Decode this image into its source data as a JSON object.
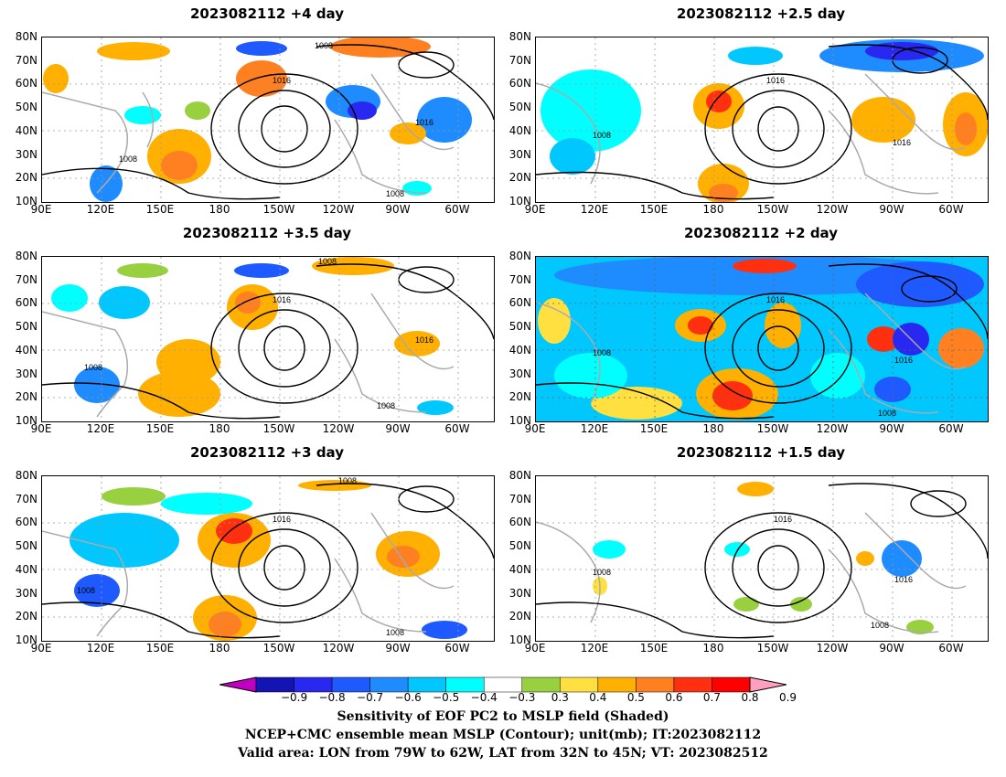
{
  "panels": [
    {
      "title": "2023082112  +4 day",
      "contour_label_1": "1008",
      "contour_label_2": "1016",
      "contour_label_3": "1016",
      "contour_label_4": "1008",
      "contour_label_5": "1008"
    },
    {
      "title": "2023082112  +2.5 day",
      "contour_label_1": "1016",
      "contour_label_2": "1008",
      "contour_label_3": "1016"
    },
    {
      "title": "2023082112  +3.5 day",
      "contour_label_1": "1008",
      "contour_label_2": "1016",
      "contour_label_3": "1008",
      "contour_label_4": "1016",
      "contour_label_5": "1008"
    },
    {
      "title": "2023082112  +2 day",
      "contour_label_1": "1016",
      "contour_label_2": "1008",
      "contour_label_3": "1016",
      "contour_label_4": "1008"
    },
    {
      "title": "2023082112  +3 day",
      "contour_label_1": "1008",
      "contour_label_2": "1016",
      "contour_label_3": "1008",
      "contour_label_4": "1008"
    },
    {
      "title": "2023082112  +1.5 day",
      "contour_label_1": "1016",
      "contour_label_2": "1008",
      "contour_label_3": "1016",
      "contour_label_4": "1008"
    }
  ],
  "lat_ticks": [
    "80N",
    "70N",
    "60N",
    "50N",
    "40N",
    "30N",
    "20N",
    "10N"
  ],
  "lon_ticks": [
    "90E",
    "120E",
    "150E",
    "180",
    "150W",
    "120W",
    "90W",
    "60W"
  ],
  "colorbar": {
    "labels": [
      "-0.9",
      "-0.8",
      "-0.7",
      "-0.6",
      "-0.5",
      "-0.4",
      "-0.3",
      "0.3",
      "0.4",
      "0.5",
      "0.6",
      "0.7",
      "0.8",
      "0.9"
    ],
    "colors": [
      "#c000c0",
      "#1414b4",
      "#2828f0",
      "#1e5aff",
      "#1e8cff",
      "#00c8ff",
      "#00ffff",
      "#ffffff",
      "#98d040",
      "#ffe040",
      "#ffb000",
      "#ff8020",
      "#ff3010",
      "#ff0000",
      "#ffa0c0"
    ]
  },
  "captions": {
    "line1": "Sensitivity of EOF PC2 to MSLP field (Shaded)",
    "line2": "NCEP+CMC ensemble mean MSLP (Contour); unit(mb); IT:2023082112",
    "line3": "Valid area: LON from 79W to 62W, LAT from 32N to 45N; VT: 2023082512"
  }
}
